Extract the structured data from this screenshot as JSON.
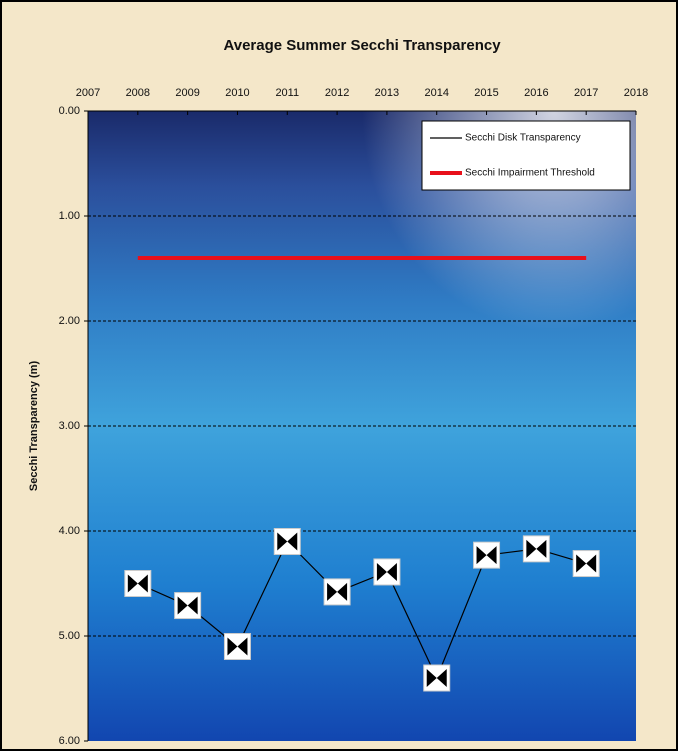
{
  "chart_data": {
    "type": "line",
    "title": "Average Summer Secchi Transparency",
    "y_label": "Secchi Transparency (m)",
    "xlim": [
      2007,
      2018
    ],
    "xticks": [
      2007,
      2008,
      2009,
      2010,
      2011,
      2012,
      2013,
      2014,
      2015,
      2016,
      2017,
      2018
    ],
    "ylim": [
      0,
      6
    ],
    "y_inverted": true,
    "yticks": [
      {
        "value": 0,
        "label": "0.00"
      },
      {
        "value": 1,
        "label": "1.00"
      },
      {
        "value": 2,
        "label": "2.00"
      },
      {
        "value": 3,
        "label": "3.00"
      },
      {
        "value": 4,
        "label": "4.00"
      },
      {
        "value": 5,
        "label": "5.00"
      },
      {
        "value": 6,
        "label": "6.00"
      }
    ],
    "grid": true,
    "legend": "top-right",
    "series": [
      {
        "name": "Secchi Disk Transparency",
        "color": "#000000",
        "marker": true,
        "x": [
          2008,
          2009,
          2010,
          2011,
          2012,
          2013,
          2014,
          2015,
          2016,
          2017
        ],
        "values": [
          4.5,
          4.71,
          5.1,
          4.1,
          4.58,
          4.39,
          5.4,
          4.23,
          4.17,
          4.31
        ]
      },
      {
        "name": "Secchi Impairment Threshold",
        "color": "#e8101a",
        "marker": false,
        "x": [
          2008,
          2017
        ],
        "values": [
          1.4,
          1.4
        ]
      }
    ]
  }
}
